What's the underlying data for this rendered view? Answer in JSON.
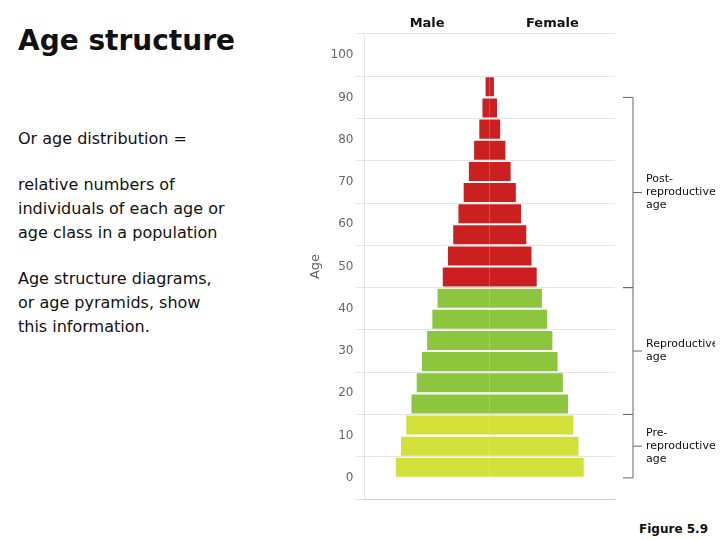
{
  "chart_data": {
    "type": "bar",
    "orientation": "horizontal",
    "title": "Age structure",
    "ylabel": "Age",
    "y": [
      0,
      5,
      10,
      15,
      20,
      25,
      30,
      35,
      40,
      45,
      50,
      55,
      60,
      65,
      70,
      75,
      80,
      85,
      90
    ],
    "series": [
      {
        "name": "Male",
        "values": [
          -9,
          -8.5,
          -8,
          -7.5,
          -7,
          -6.5,
          -6,
          -5.5,
          -5,
          -4.5,
          -4,
          -3.5,
          -3,
          -2.5,
          -2,
          -1.5,
          -1,
          -0.7,
          -0.4
        ]
      },
      {
        "name": "Female",
        "values": [
          9,
          8.5,
          8,
          7.5,
          7,
          6.5,
          6,
          5.5,
          5,
          4.5,
          4,
          3.5,
          3,
          2.5,
          2,
          1.5,
          1,
          0.7,
          0.4
        ]
      }
    ],
    "colors": [
      "#d4e03a",
      "#d4e03a",
      "#d4e03a",
      "#8cc63f",
      "#8cc63f",
      "#8cc63f",
      "#8cc63f",
      "#8cc63f",
      "#8cc63f",
      "#cc2020",
      "#cc2020",
      "#cc2020",
      "#cc2020",
      "#cc2020",
      "#cc2020",
      "#cc2020",
      "#cc2020",
      "#cc2020",
      "#cc2020"
    ],
    "xlim": [
      -12,
      12
    ],
    "ylim": [
      0,
      100
    ],
    "yticks": [
      0,
      10,
      20,
      30,
      40,
      50,
      60,
      70,
      80,
      90,
      100
    ],
    "tick_labels": "y",
    "grid": "y",
    "annotations": [
      {
        "text": "Post-\nreproductive\nage",
        "y_center": 67.5,
        "y_min": 45,
        "y_max": 90
      },
      {
        "text": "Reproductive\nage",
        "y_center": 30,
        "y_min": 15,
        "y_max": 45
      },
      {
        "text": "Pre-\nreproductive\nage",
        "y_center": 7.5,
        "y_min": 0,
        "y_max": 15
      }
    ],
    "side_text": [
      "Or age distribution =",
      "relative numbers of\nindividuals of each age or\nage class in a population",
      "Age structure diagrams,\nor age pyramids, show\nthis information."
    ],
    "figure_label": "Figure 5.9"
  }
}
